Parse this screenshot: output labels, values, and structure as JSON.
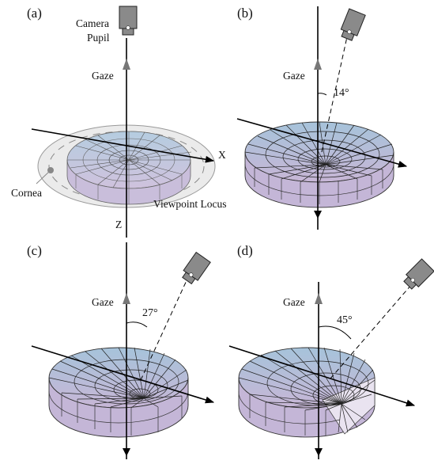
{
  "panels": [
    {
      "letter": "(a)",
      "tilt_deg": 0,
      "labels": {
        "camera": "Camera",
        "pupil": "Pupil",
        "gaze": "Gaze",
        "x_axis": "X",
        "z_axis": "Z",
        "cornea": "Cornea",
        "locus": "Viewpoint Locus"
      }
    },
    {
      "letter": "(b)",
      "tilt_deg": 14,
      "labels": {
        "gaze": "Gaze",
        "angle": "14°"
      }
    },
    {
      "letter": "(c)",
      "tilt_deg": 27,
      "labels": {
        "gaze": "Gaze",
        "angle": "27°"
      }
    },
    {
      "letter": "(d)",
      "tilt_deg": 45,
      "labels": {
        "gaze": "Gaze",
        "angle": "45°"
      }
    }
  ],
  "colors": {
    "surface_top": "#a6c3da",
    "surface_bottom": "#c7b6d6",
    "cornea_fill": "#e9e9e9",
    "camera": "#8a8a8a",
    "axis": "#000000"
  }
}
